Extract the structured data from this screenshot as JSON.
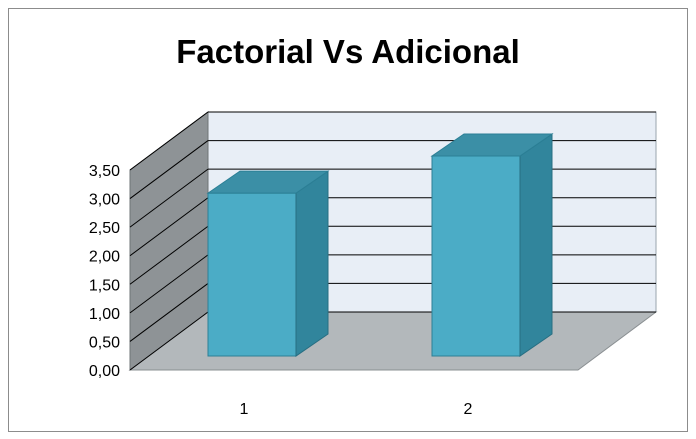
{
  "chart_data": {
    "type": "bar",
    "title": "Factorial Vs Adicional",
    "categories": [
      "1",
      "2"
    ],
    "values": [
      2.85,
      3.5
    ],
    "ylim": [
      0,
      3.5
    ],
    "yticks": [
      "0,00",
      "0,50",
      "1,00",
      "1,50",
      "2,00",
      "2,50",
      "3,00",
      "3,50"
    ],
    "grid": true,
    "legend": "none",
    "three_d": true,
    "colors": {
      "bar_front": "#4bacc6",
      "bar_side": "#31859c",
      "bar_top": "#3b8fa6",
      "back_wall": "#e8eef6",
      "side_wall": "#8e9396",
      "floor": "#b3b8bb",
      "grid": "#000000"
    }
  }
}
